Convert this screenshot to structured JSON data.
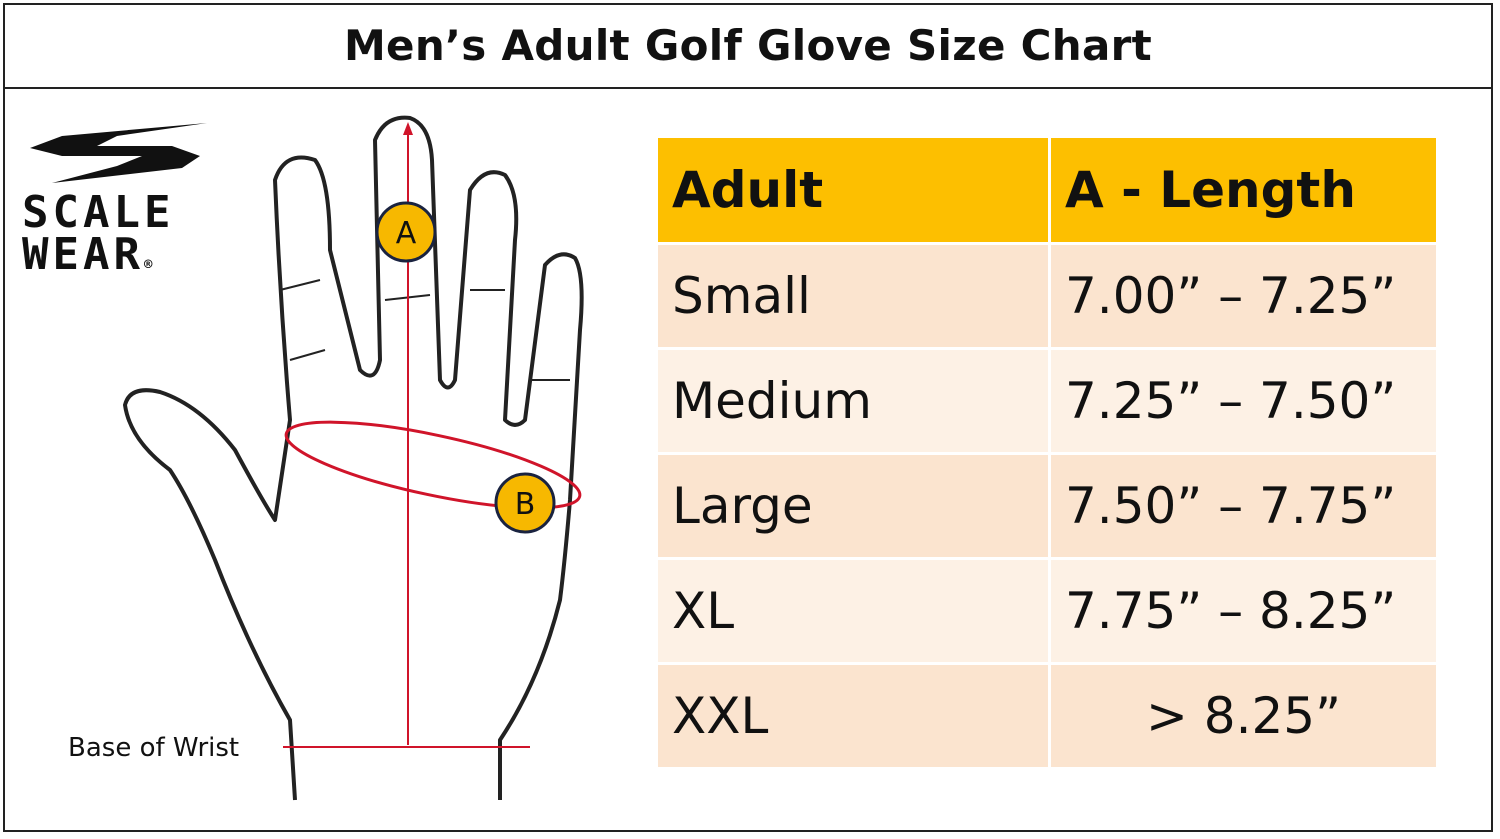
{
  "title": "Men’s Adult Golf Glove Size Chart",
  "brand": {
    "line1": "SCALE",
    "line2": "WEAR",
    "registered": "®"
  },
  "diagram": {
    "marker_a": "A",
    "marker_b": "B",
    "wrist_label": "Base of Wrist",
    "colors": {
      "marker": "#f7b800",
      "measure_line": "#d0142a",
      "outline": "#222222"
    }
  },
  "table": {
    "headers": [
      "Adult",
      "A - Length"
    ],
    "rows": [
      [
        "Small",
        "7.00” – 7.25”"
      ],
      [
        "Medium",
        "7.25” – 7.50”"
      ],
      [
        "Large",
        "7.50” – 7.75”"
      ],
      [
        "XL",
        "7.75” – 8.25”"
      ],
      [
        "XXL",
        "> 8.25”"
      ]
    ],
    "colors": {
      "header": "#fdbf00",
      "row_odd": "#fbe4cf",
      "row_even": "#fdf1e5"
    }
  }
}
